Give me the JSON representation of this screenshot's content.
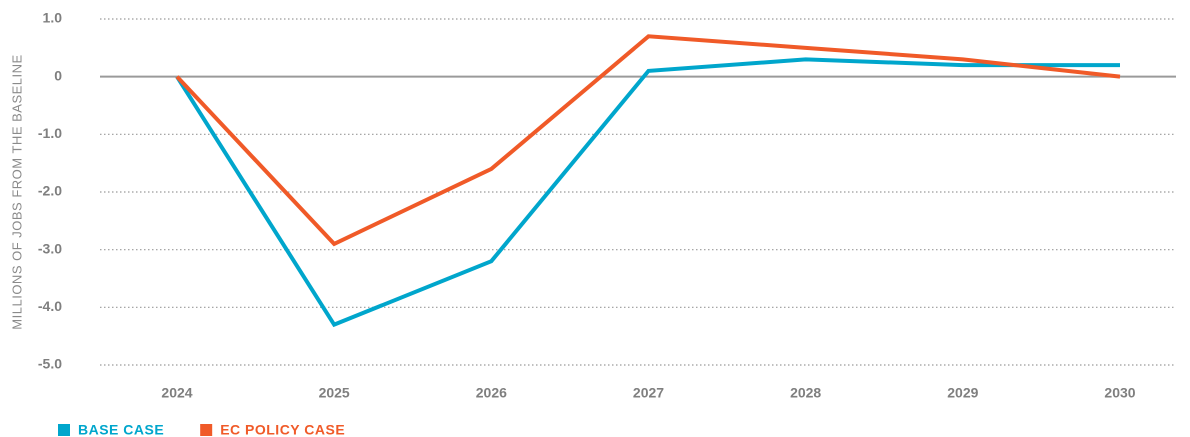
{
  "chart_data": {
    "type": "line",
    "y_label": "MILLIONS OF JOBS FROM THE BASELINE",
    "categories": [
      "2024",
      "2025",
      "2026",
      "2027",
      "2028",
      "2029",
      "2030"
    ],
    "series": [
      {
        "name": "BASE CASE",
        "color": "#00a6cc",
        "values": [
          0,
          -4.3,
          -3.2,
          0.1,
          0.3,
          0.2,
          0.2
        ]
      },
      {
        "name": "EC POLICY CASE",
        "color": "#f05a28",
        "values": [
          0,
          -2.9,
          -1.6,
          0.7,
          0.5,
          0.3,
          0
        ]
      }
    ],
    "ylim": [
      -5,
      1
    ],
    "yticks": [
      {
        "value": 1,
        "label": "1.0"
      },
      0,
      {
        "value": -1,
        "label": "-1.0"
      },
      {
        "value": -2,
        "label": "-2.0"
      },
      {
        "value": -3,
        "label": "-3.0"
      },
      {
        "value": -4,
        "label": "-4.0"
      },
      {
        "value": -5,
        "label": "-5.0"
      }
    ],
    "grid": true
  }
}
